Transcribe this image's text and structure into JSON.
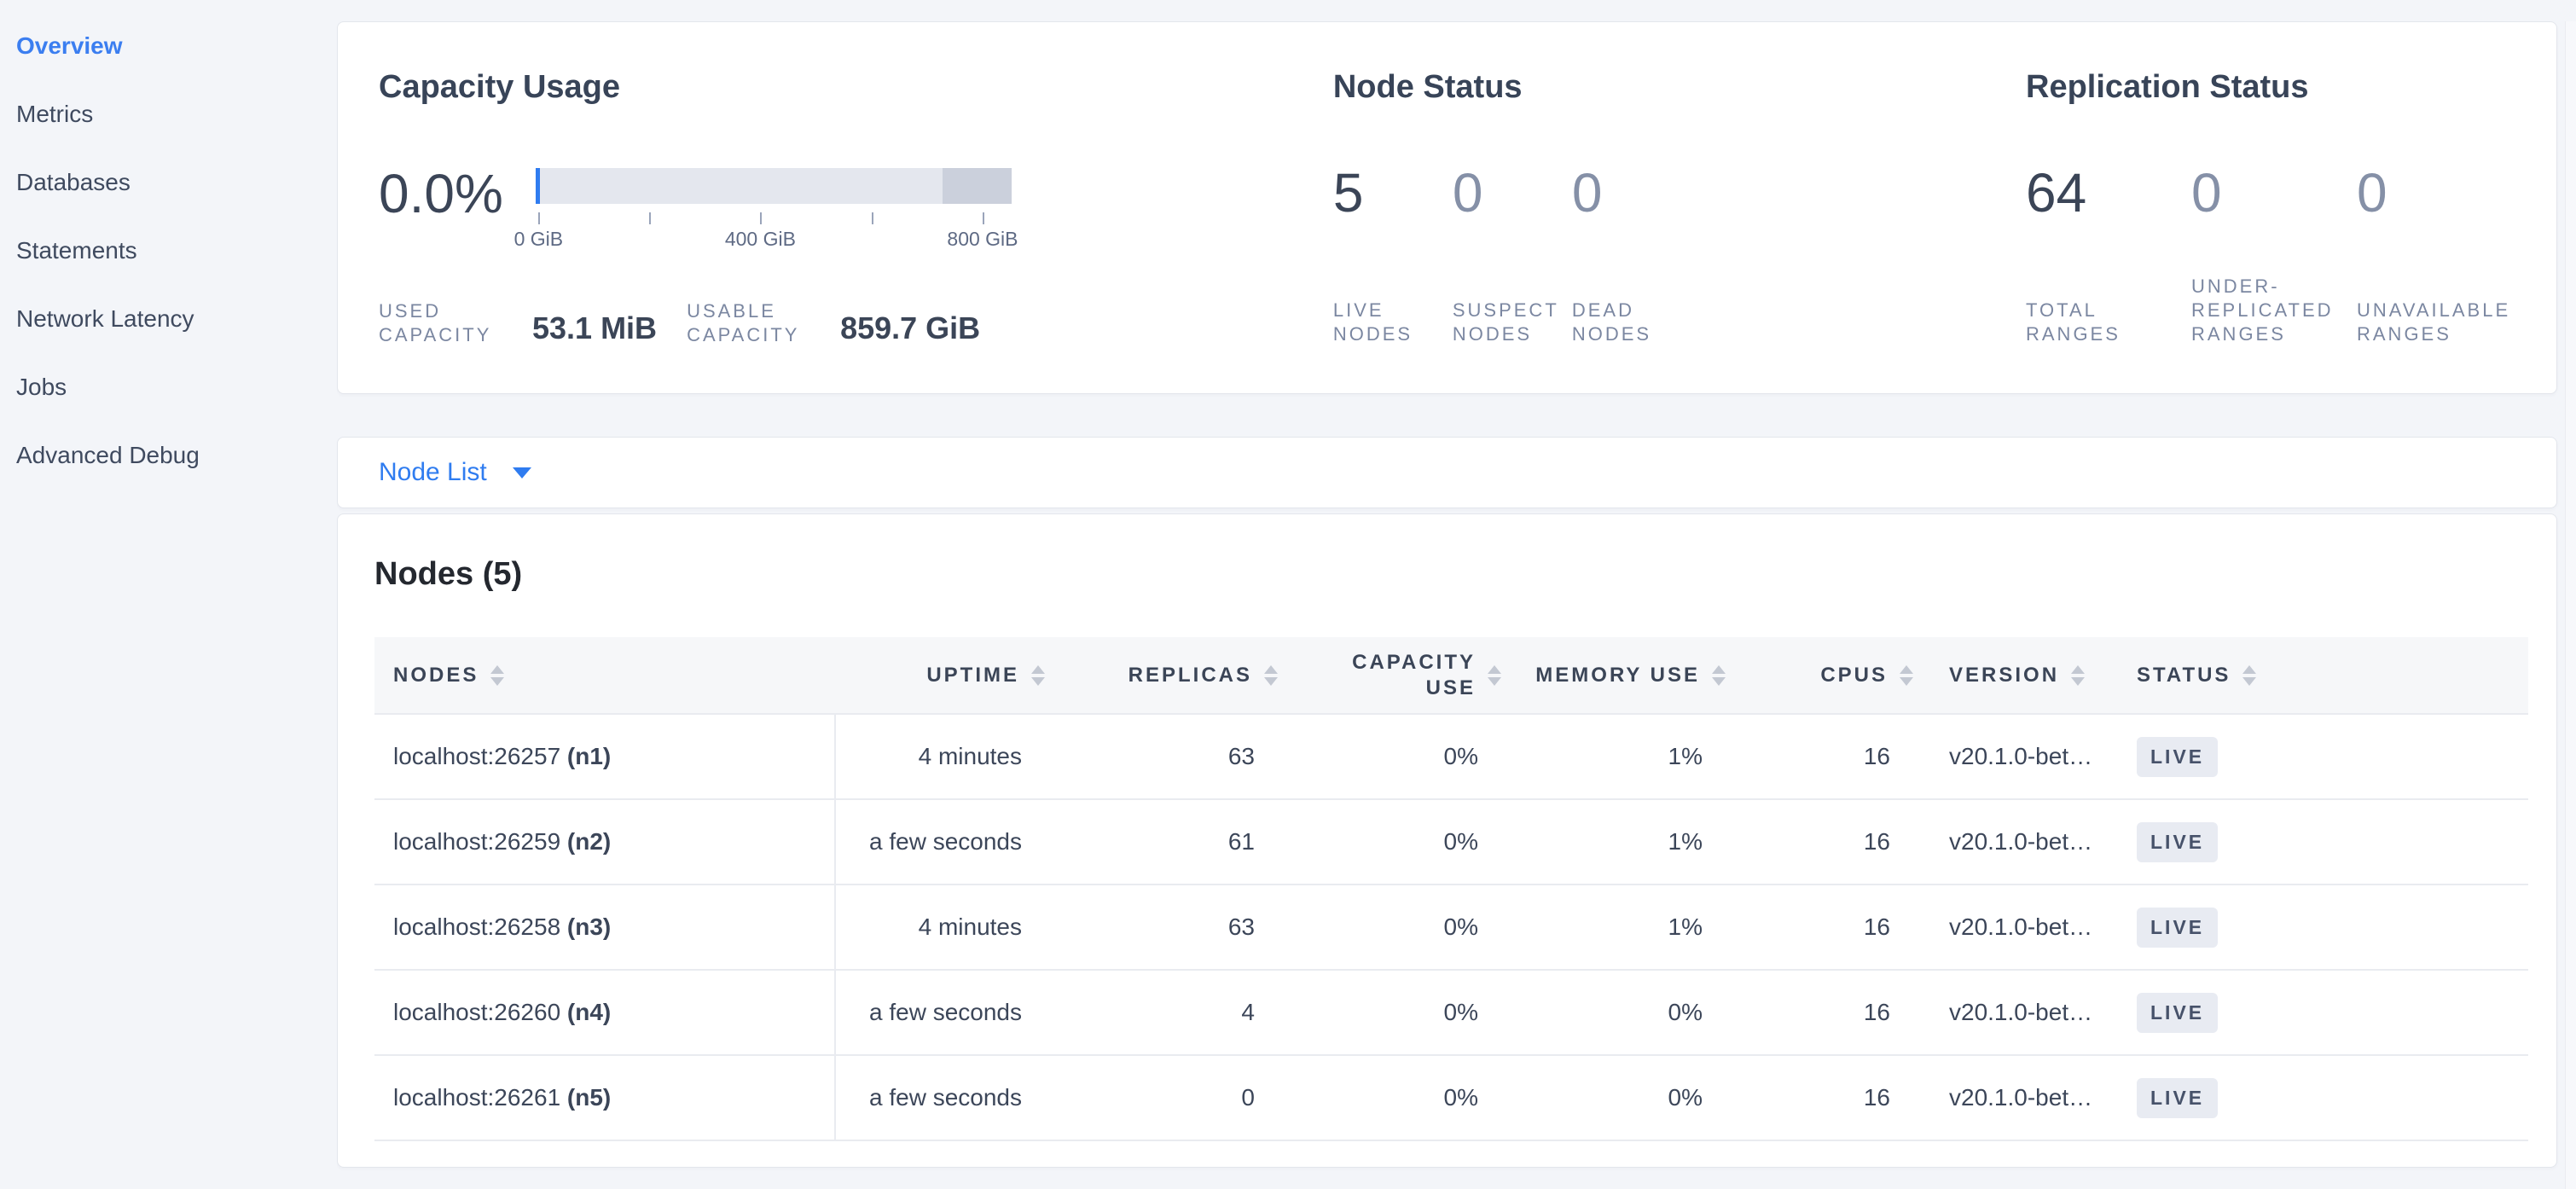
{
  "sidebar": {
    "items": [
      {
        "label": "Overview",
        "active": true
      },
      {
        "label": "Metrics",
        "active": false
      },
      {
        "label": "Databases",
        "active": false
      },
      {
        "label": "Statements",
        "active": false
      },
      {
        "label": "Network Latency",
        "active": false
      },
      {
        "label": "Jobs",
        "active": false
      },
      {
        "label": "Advanced Debug",
        "active": false
      }
    ]
  },
  "capacity": {
    "title": "Capacity Usage",
    "percent": "0.0%",
    "axis": [
      {
        "pos": 0.6,
        "label": "0 GiB"
      },
      {
        "pos": 23.9,
        "label": ""
      },
      {
        "pos": 47.2,
        "label": "400 GiB"
      },
      {
        "pos": 70.6,
        "label": ""
      },
      {
        "pos": 93.9,
        "label": "800 GiB"
      }
    ],
    "stats": [
      {
        "label": "USED CAPACITY",
        "value": "53.1 MiB"
      },
      {
        "label": "USABLE CAPACITY",
        "value": "859.7 GiB"
      }
    ]
  },
  "node_status": {
    "title": "Node Status",
    "stats": [
      {
        "value": "5",
        "label": "LIVE NODES",
        "muted": false
      },
      {
        "value": "0",
        "label": "SUSPECT NODES",
        "muted": true
      },
      {
        "value": "0",
        "label": "DEAD NODES",
        "muted": true
      }
    ]
  },
  "replication_status": {
    "title": "Replication Status",
    "stats": [
      {
        "value": "64",
        "label": "TOTAL RANGES",
        "muted": false
      },
      {
        "value": "0",
        "label": "UNDER-REPLICATED RANGES",
        "muted": true
      },
      {
        "value": "0",
        "label": "UNAVAILABLE RANGES",
        "muted": true
      }
    ]
  },
  "node_list": {
    "label": "Node List"
  },
  "table": {
    "title": "Nodes (5)",
    "columns": [
      "NODES",
      "UPTIME",
      "REPLICAS",
      "CAPACITY USE",
      "MEMORY USE",
      "CPUS",
      "VERSION",
      "STATUS"
    ],
    "rows": [
      {
        "node": "localhost:26257",
        "node_id": "(n1)",
        "uptime": "4 minutes",
        "replicas": "63",
        "capacity_use": "0%",
        "memory_use": "1%",
        "cpus": "16",
        "version": "v20.1.0-bet…",
        "status": "LIVE"
      },
      {
        "node": "localhost:26259",
        "node_id": "(n2)",
        "uptime": "a few seconds",
        "replicas": "61",
        "capacity_use": "0%",
        "memory_use": "1%",
        "cpus": "16",
        "version": "v20.1.0-bet…",
        "status": "LIVE"
      },
      {
        "node": "localhost:26258",
        "node_id": "(n3)",
        "uptime": "4 minutes",
        "replicas": "63",
        "capacity_use": "0%",
        "memory_use": "1%",
        "cpus": "16",
        "version": "v20.1.0-bet…",
        "status": "LIVE"
      },
      {
        "node": "localhost:26260",
        "node_id": "(n4)",
        "uptime": "a few seconds",
        "replicas": "4",
        "capacity_use": "0%",
        "memory_use": "0%",
        "cpus": "16",
        "version": "v20.1.0-bet…",
        "status": "LIVE"
      },
      {
        "node": "localhost:26261",
        "node_id": "(n5)",
        "uptime": "a few seconds",
        "replicas": "0",
        "capacity_use": "0%",
        "memory_use": "0%",
        "cpus": "16",
        "version": "v20.1.0-bet…",
        "status": "LIVE"
      }
    ]
  },
  "colors": {
    "accent": "#2f7cf0",
    "badge_bg": "#e8ebf2",
    "bar_track": "#e4e7ee",
    "bar_reserved": "#cbd0dc"
  }
}
